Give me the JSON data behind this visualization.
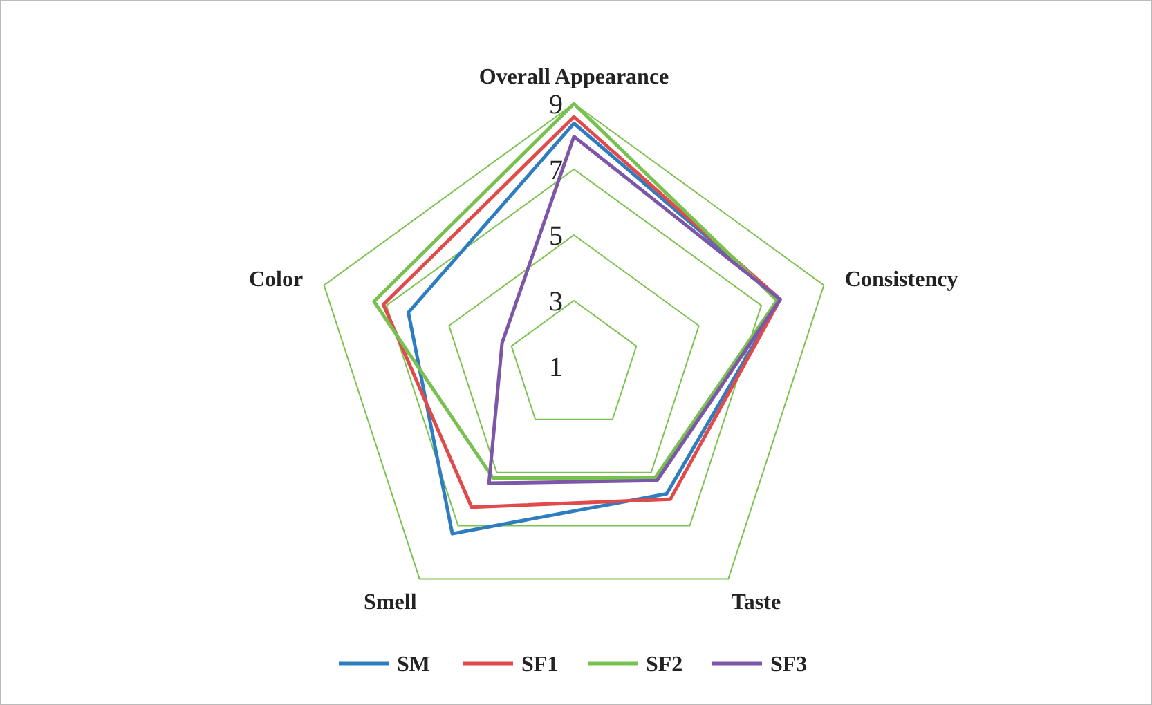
{
  "chart_data": {
    "type": "radar",
    "categories": [
      "Overall Appearance",
      "Consistency",
      "Taste",
      "Smell",
      "Color"
    ],
    "ylim": [
      1,
      9
    ],
    "yticks": [
      1,
      3,
      5,
      7,
      9
    ],
    "grid": true,
    "legend": "bottom",
    "series": [
      {
        "name": "SM",
        "color": "#2e7dc0",
        "values": [
          8.4,
          7.6,
          5.8,
          7.3,
          6.3
        ]
      },
      {
        "name": "SF1",
        "color": "#e04a4a",
        "values": [
          8.6,
          7.6,
          6.0,
          6.3,
          7.1
        ]
      },
      {
        "name": "SF2",
        "color": "#78c04f",
        "values": [
          9.0,
          7.5,
          5.2,
          5.2,
          7.4
        ]
      },
      {
        "name": "SF3",
        "color": "#7d56a8",
        "values": [
          8.0,
          7.6,
          5.3,
          5.4,
          3.3
        ]
      }
    ]
  }
}
